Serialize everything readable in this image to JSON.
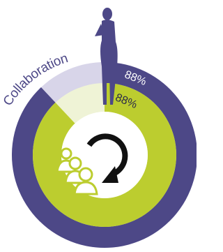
{
  "chart_data": {
    "type": "donut",
    "title": "Collaboration",
    "series": [
      {
        "color": "#4d4887",
        "values": [
          88
        ],
        "value_labels": [
          "88%"
        ]
      },
      {
        "color": "#bccd2f",
        "values": [
          88
        ],
        "value_labels": [
          "88%"
        ]
      }
    ]
  }
}
